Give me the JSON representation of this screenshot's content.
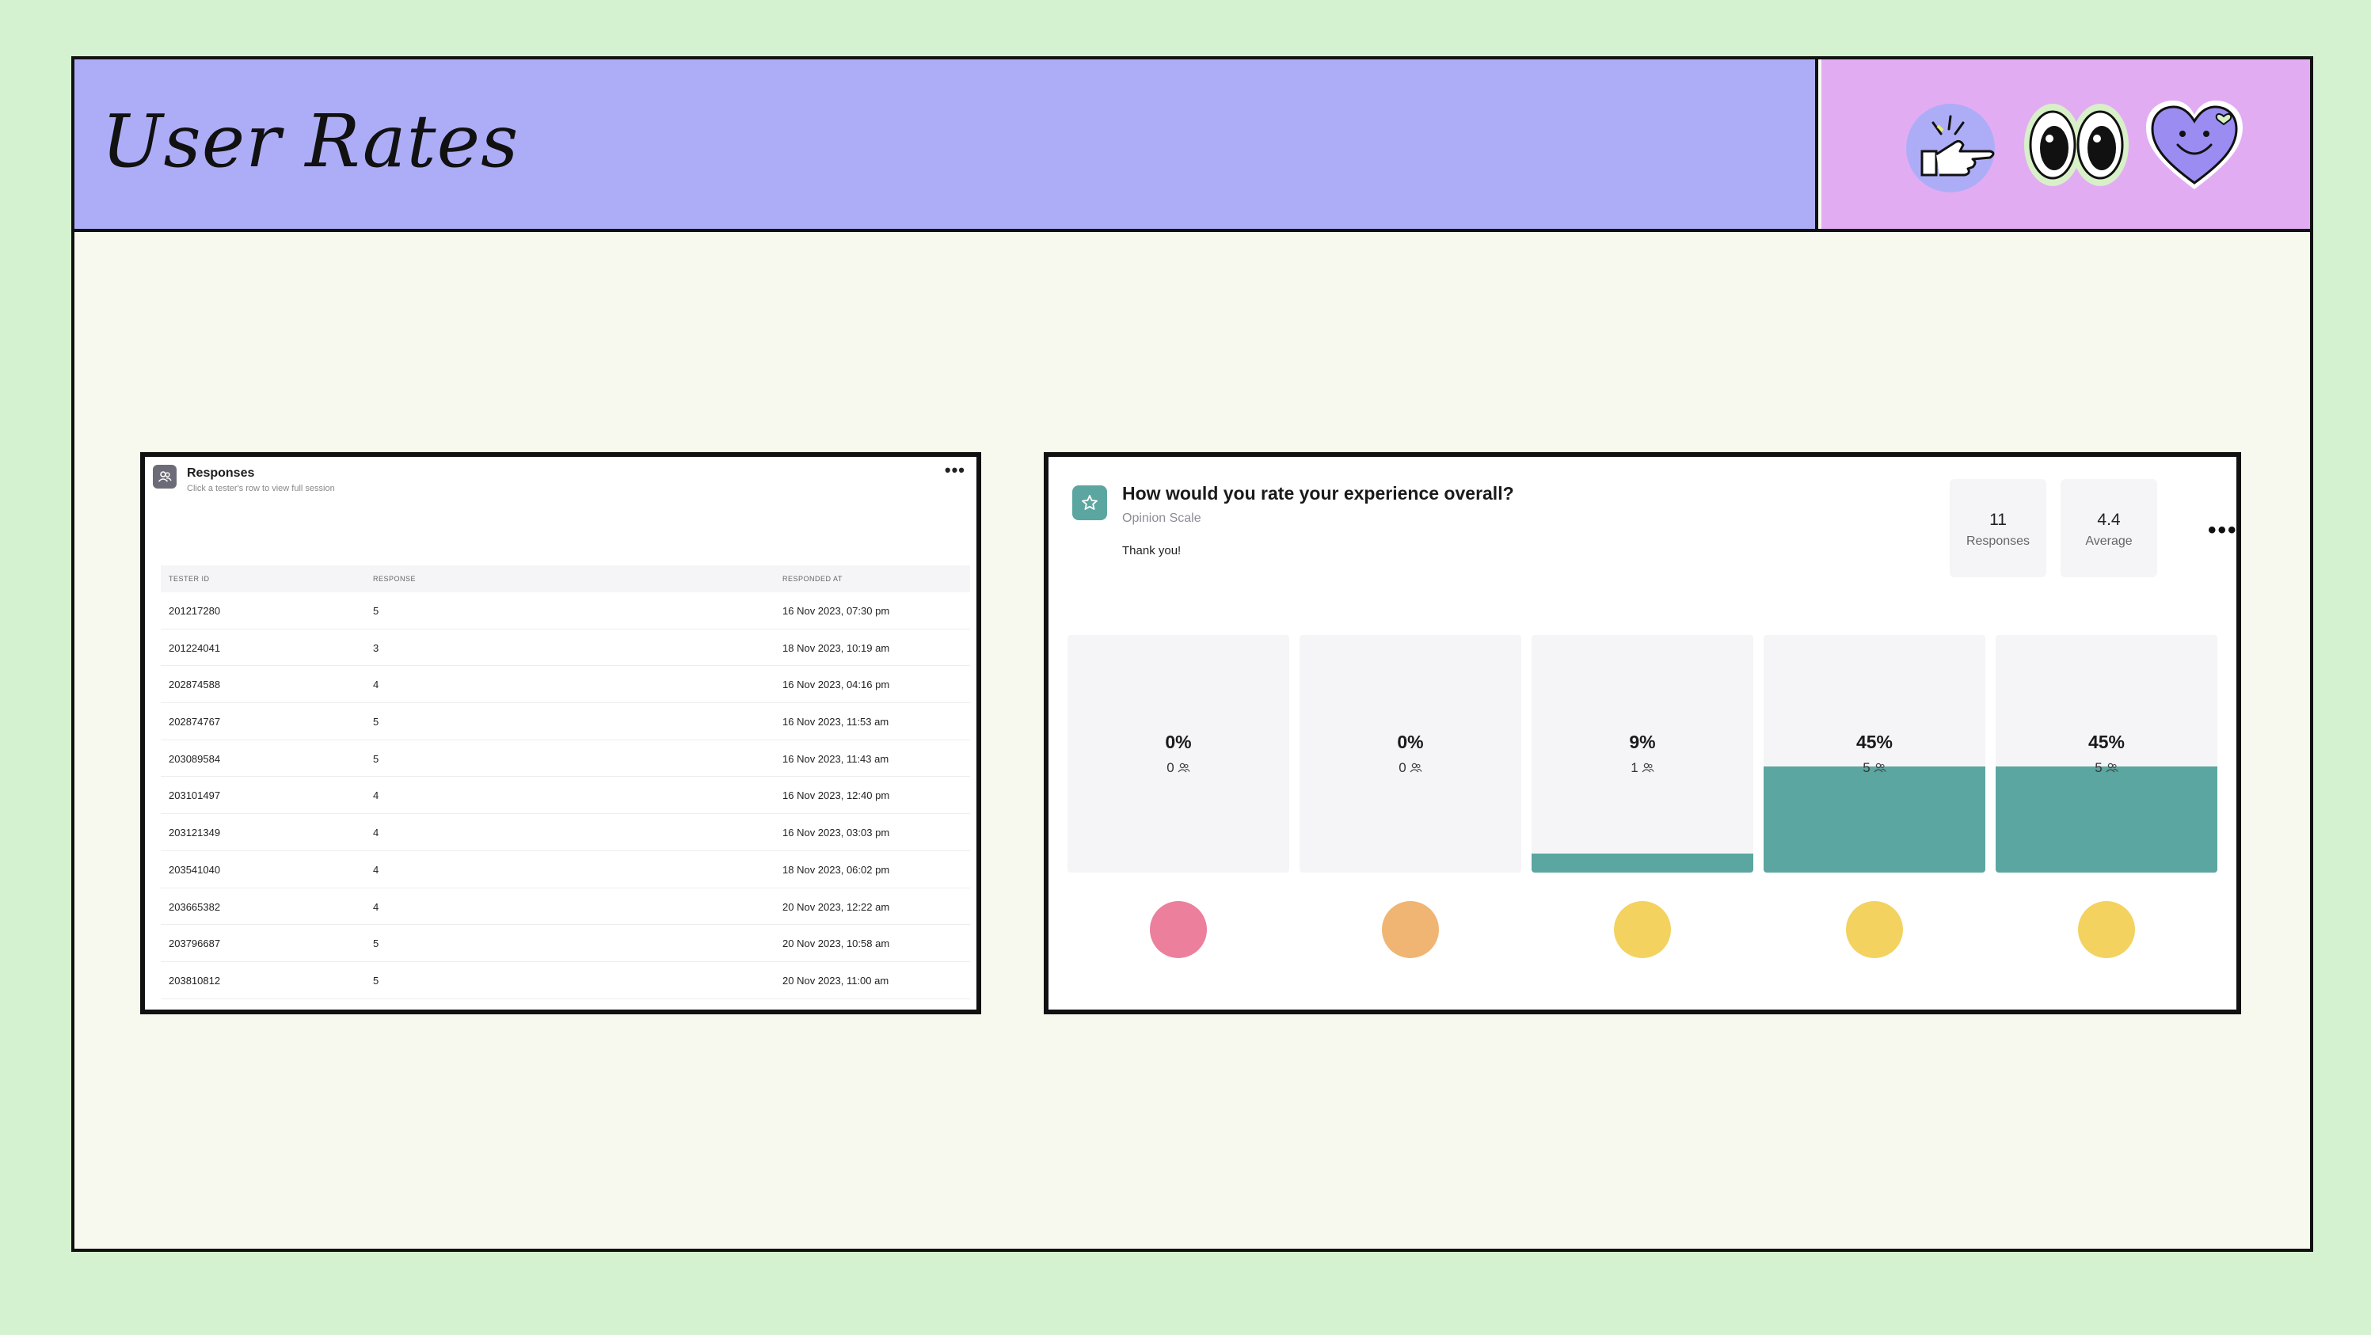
{
  "banner": {
    "title": "User Rates",
    "colors": {
      "title_bg": "#adadf7",
      "icons_bg": "#e2acf3",
      "page_bg": "#d4f2cf",
      "slide_bg": "#f7f9ee"
    },
    "stickers": [
      "hand-gesture-icon",
      "eyes-icon",
      "smiling-heart-icon"
    ]
  },
  "responses_card": {
    "title": "Responses",
    "subtitle": "Click a tester's row to view full session",
    "more": "•••",
    "columns": [
      "TESTER ID",
      "RESPONSE",
      "RESPONDED AT"
    ],
    "rows": [
      [
        "201217280",
        "5",
        "16 Nov 2023, 07:30 pm"
      ],
      [
        "201224041",
        "3",
        "18 Nov 2023, 10:19 am"
      ],
      [
        "202874588",
        "4",
        "16 Nov 2023, 04:16 pm"
      ],
      [
        "202874767",
        "5",
        "16 Nov 2023, 11:53 am"
      ],
      [
        "203089584",
        "5",
        "16 Nov 2023, 11:43 am"
      ],
      [
        "203101497",
        "4",
        "16 Nov 2023, 12:40 pm"
      ],
      [
        "203121349",
        "4",
        "16 Nov 2023, 03:03 pm"
      ],
      [
        "203541040",
        "4",
        "18 Nov 2023, 06:02 pm"
      ],
      [
        "203665382",
        "4",
        "20 Nov 2023, 12:22 am"
      ],
      [
        "203796687",
        "5",
        "20 Nov 2023, 10:58 am"
      ],
      [
        "203810812",
        "5",
        "20 Nov 2023, 11:00 am"
      ]
    ]
  },
  "opinion_card": {
    "question": "How would you rate your experience overall?",
    "type": "Opinion Scale",
    "thanks": "Thank you!",
    "stats": [
      {
        "value": "11",
        "label": "Responses"
      },
      {
        "value": "4.4",
        "label": "Average"
      }
    ],
    "more": "•••",
    "accent": "#5ba6a0",
    "scale": [
      {
        "pct": "0%",
        "count": "0",
        "fraction": 0,
        "emoji_color": "#ec7f9c"
      },
      {
        "pct": "0%",
        "count": "0",
        "fraction": 0,
        "emoji_color": "#f0b572"
      },
      {
        "pct": "9%",
        "count": "1",
        "fraction": 0.09,
        "emoji_color": "#f3d260"
      },
      {
        "pct": "45%",
        "count": "5",
        "fraction": 0.45,
        "emoji_color": "#f3d260"
      },
      {
        "pct": "45%",
        "count": "5",
        "fraction": 0.45,
        "emoji_color": "#f3d260"
      }
    ]
  }
}
